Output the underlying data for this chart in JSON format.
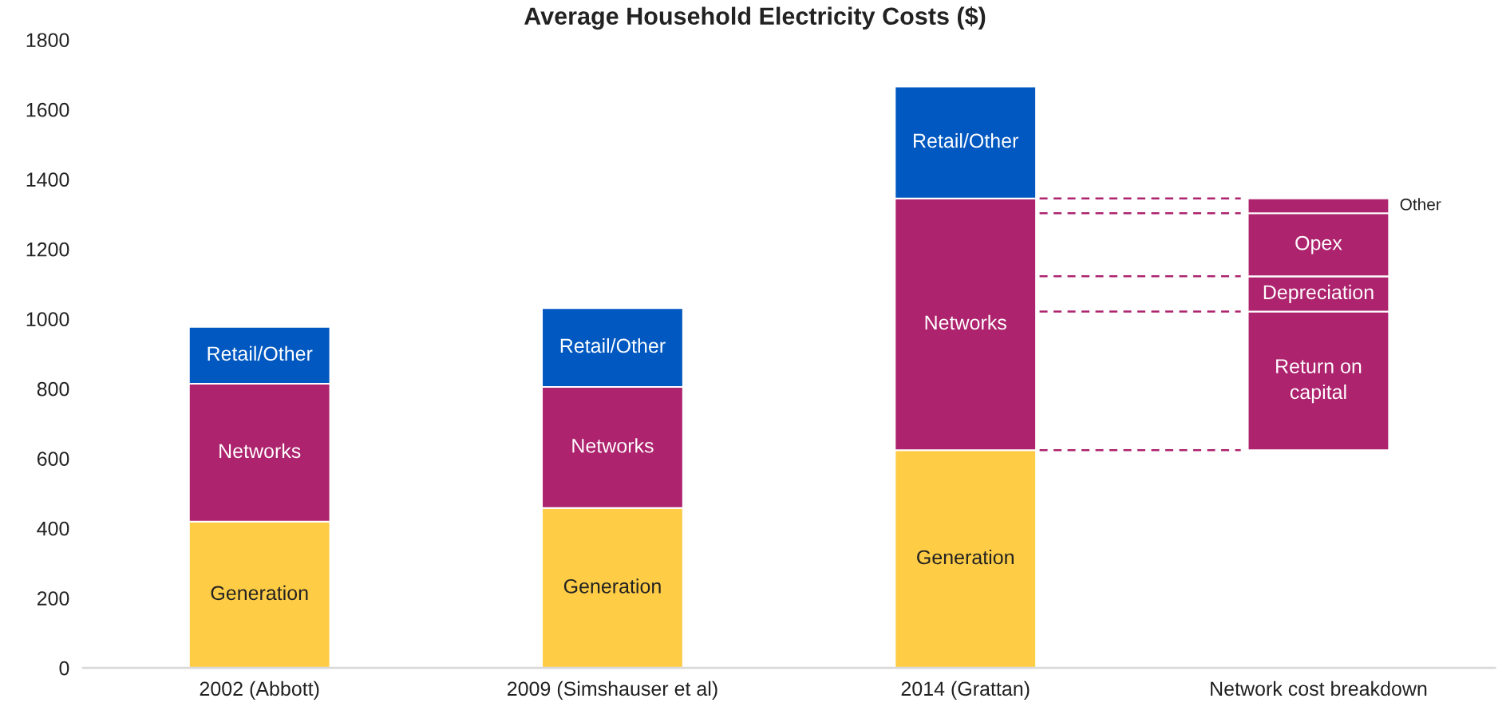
{
  "chart_data": {
    "type": "bar",
    "stacked": true,
    "title": "Average Household Electricity Costs ($)",
    "categories": [
      "2002 (Abbott)",
      "2009 (Simshauser et al)",
      "2014 (Grattan)",
      "Network cost breakdown"
    ],
    "series": [
      {
        "name": "Generation",
        "color": "#fecc45",
        "values": [
          419,
          458,
          624,
          null
        ]
      },
      {
        "name": "Networks",
        "color": "#ad236e",
        "values": [
          395,
          347,
          721,
          null
        ]
      },
      {
        "name": "Retail/Other",
        "color": "#0058c0",
        "values": [
          163,
          226,
          321,
          null
        ]
      },
      {
        "name": "Return on capital",
        "color": "#ad236e",
        "values": [
          null,
          null,
          null,
          397
        ],
        "base": [
          null,
          null,
          null,
          624
        ]
      },
      {
        "name": "Depreciation",
        "color": "#ad236e",
        "values": [
          null,
          null,
          null,
          101
        ],
        "base": [
          null,
          null,
          null,
          1021
        ]
      },
      {
        "name": "Opex",
        "color": "#ad236e",
        "values": [
          null,
          null,
          null,
          181
        ],
        "base": [
          null,
          null,
          null,
          1122
        ]
      },
      {
        "name": "Other",
        "color": "#ad236e",
        "values": [
          null,
          null,
          null,
          42
        ],
        "base": [
          null,
          null,
          null,
          1303
        ]
      }
    ],
    "ylim": [
      0,
      1800
    ],
    "yticks": [
      0,
      200,
      400,
      600,
      800,
      1000,
      1200,
      1400,
      1600,
      1800
    ],
    "grid": false
  }
}
